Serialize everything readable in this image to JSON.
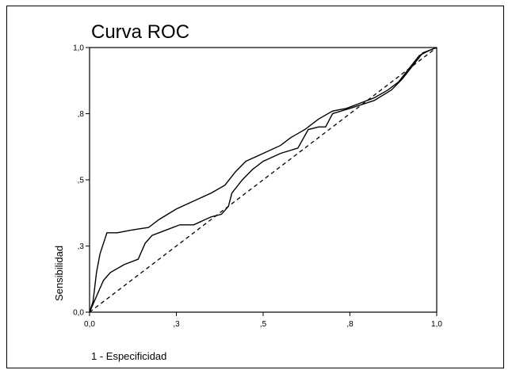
{
  "chart_data": {
    "type": "line",
    "title": "Curva ROC",
    "xlabel": "1 - Especificidad",
    "ylabel": "Sensibilidad",
    "xlim": [
      0,
      1
    ],
    "ylim": [
      0,
      1
    ],
    "x_ticks": [
      {
        "value": 0.0,
        "label": "0,0"
      },
      {
        "value": 0.25,
        "label": ",3"
      },
      {
        "value": 0.5,
        "label": ",5"
      },
      {
        "value": 0.75,
        "label": ",8"
      },
      {
        "value": 1.0,
        "label": "1,0"
      }
    ],
    "y_ticks": [
      {
        "value": 0.0,
        "label": "0,0"
      },
      {
        "value": 0.25,
        "label": ",3"
      },
      {
        "value": 0.5,
        "label": ",5"
      },
      {
        "value": 0.75,
        "label": ",8"
      },
      {
        "value": 1.0,
        "label": "1,0"
      }
    ],
    "grid": false,
    "legend": "none",
    "line_color": "#000000",
    "series": [
      {
        "style": "solid",
        "points": [
          [
            0,
            0
          ],
          [
            0.01,
            0.04
          ],
          [
            0.02,
            0.15
          ],
          [
            0.03,
            0.22
          ],
          [
            0.04,
            0.26
          ],
          [
            0.05,
            0.3
          ],
          [
            0.08,
            0.3
          ],
          [
            0.12,
            0.31
          ],
          [
            0.17,
            0.32
          ],
          [
            0.2,
            0.35
          ],
          [
            0.25,
            0.39
          ],
          [
            0.3,
            0.42
          ],
          [
            0.35,
            0.45
          ],
          [
            0.39,
            0.48
          ],
          [
            0.42,
            0.53
          ],
          [
            0.45,
            0.57
          ],
          [
            0.5,
            0.6
          ],
          [
            0.55,
            0.63
          ],
          [
            0.58,
            0.66
          ],
          [
            0.62,
            0.69
          ],
          [
            0.66,
            0.73
          ],
          [
            0.7,
            0.76
          ],
          [
            0.74,
            0.77
          ],
          [
            0.78,
            0.79
          ],
          [
            0.82,
            0.81
          ],
          [
            0.86,
            0.84
          ],
          [
            0.89,
            0.87
          ],
          [
            0.92,
            0.92
          ],
          [
            0.95,
            0.97
          ],
          [
            0.98,
            0.99
          ],
          [
            1,
            1
          ]
        ]
      },
      {
        "style": "solid",
        "points": [
          [
            0,
            0
          ],
          [
            0.01,
            0.03
          ],
          [
            0.02,
            0.06
          ],
          [
            0.04,
            0.12
          ],
          [
            0.06,
            0.15
          ],
          [
            0.1,
            0.18
          ],
          [
            0.14,
            0.2
          ],
          [
            0.16,
            0.26
          ],
          [
            0.18,
            0.29
          ],
          [
            0.22,
            0.31
          ],
          [
            0.26,
            0.33
          ],
          [
            0.3,
            0.33
          ],
          [
            0.35,
            0.36
          ],
          [
            0.38,
            0.37
          ],
          [
            0.4,
            0.4
          ],
          [
            0.41,
            0.45
          ],
          [
            0.44,
            0.5
          ],
          [
            0.47,
            0.54
          ],
          [
            0.5,
            0.57
          ],
          [
            0.55,
            0.6
          ],
          [
            0.6,
            0.62
          ],
          [
            0.63,
            0.69
          ],
          [
            0.66,
            0.7
          ],
          [
            0.68,
            0.7
          ],
          [
            0.7,
            0.75
          ],
          [
            0.75,
            0.77
          ],
          [
            0.82,
            0.8
          ],
          [
            0.87,
            0.84
          ],
          [
            0.9,
            0.88
          ],
          [
            0.93,
            0.93
          ],
          [
            0.96,
            0.98
          ],
          [
            1,
            1
          ]
        ]
      },
      {
        "style": "dashed",
        "points": [
          [
            0,
            0
          ],
          [
            1,
            1
          ]
        ]
      }
    ]
  }
}
